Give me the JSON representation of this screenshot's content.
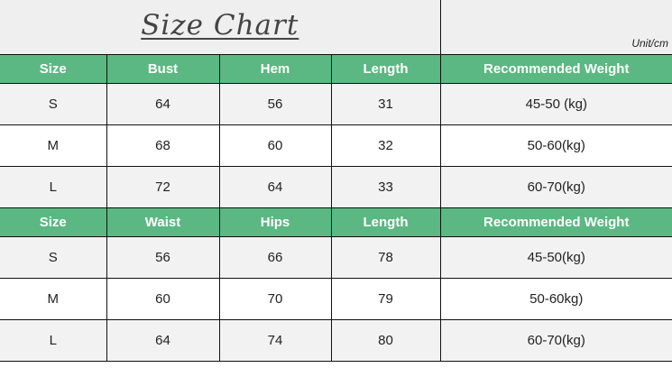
{
  "title": "Size Chart",
  "unit": "Unit/cm",
  "colors": {
    "header_bg": "#5bb882",
    "header_text": "#ffffff",
    "alt_row": "#f2f2f2"
  },
  "tables": [
    {
      "headers": [
        "Size",
        "Bust",
        "Hem",
        "Length",
        "Recommended Weight"
      ],
      "rows": [
        [
          "S",
          "64",
          "56",
          "31",
          "45-50 (kg)"
        ],
        [
          "M",
          "68",
          "60",
          "32",
          "50-60(kg)"
        ],
        [
          "L",
          "72",
          "64",
          "33",
          "60-70(kg)"
        ]
      ]
    },
    {
      "headers": [
        "Size",
        "Waist",
        "Hips",
        "Length",
        "Recommended Weight"
      ],
      "rows": [
        [
          "S",
          "56",
          "66",
          "78",
          "45-50(kg)"
        ],
        [
          "M",
          "60",
          "70",
          "79",
          "50-60kg)"
        ],
        [
          "L",
          "64",
          "74",
          "80",
          "60-70(kg)"
        ]
      ]
    }
  ]
}
